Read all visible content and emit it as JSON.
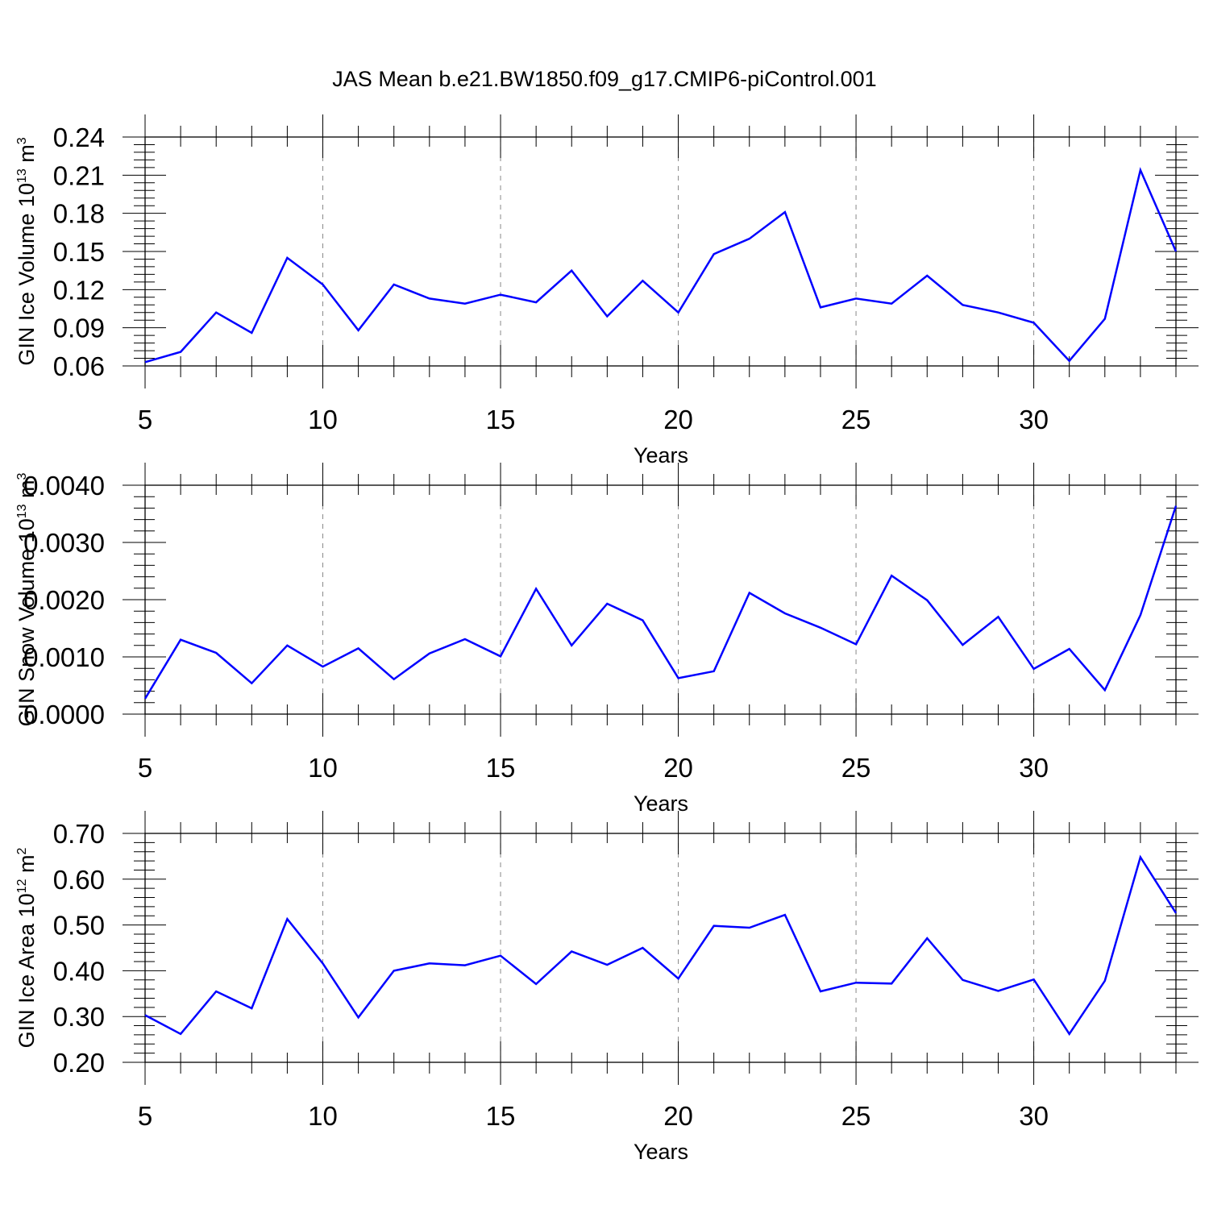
{
  "title": "JAS Mean b.e21.BW1850.f09_g17.CMIP6-piControl.001",
  "colors": {
    "line": "#0000ff",
    "axis": "#000000",
    "grid": "#888888"
  },
  "chart_data": [
    {
      "type": "line",
      "title": "JAS Mean b.e21.BW1850.f09_g17.CMIP6-piControl.001",
      "xlabel": "Years",
      "ylabel": {
        "text": "GIN Ice Volume 10",
        "exp": "13",
        "unit": " m",
        "unit_exp": "3"
      },
      "xlim": [
        5,
        34
      ],
      "ylim": [
        0.06,
        0.24
      ],
      "xticks": [
        5,
        10,
        15,
        20,
        25,
        30
      ],
      "xtick_labels": [
        "5",
        "10",
        "15",
        "20",
        "25",
        "30"
      ],
      "yticks": [
        0.06,
        0.09,
        0.12,
        0.15,
        0.18,
        0.21,
        0.24
      ],
      "ytick_labels": [
        "0.06",
        "0.09",
        "0.12",
        "0.15",
        "0.18",
        "0.21",
        "0.24"
      ],
      "grid": "vertical dashed at major x ticks",
      "series": [
        {
          "x": [
            5,
            6,
            7,
            8,
            9,
            10,
            11,
            12,
            13,
            14,
            15,
            16,
            17,
            18,
            19,
            20,
            21,
            22,
            23,
            24,
            25,
            26,
            27,
            28,
            29,
            30,
            31,
            32,
            33,
            34
          ],
          "values": [
            0.063,
            0.071,
            0.102,
            0.086,
            0.145,
            0.124,
            0.088,
            0.124,
            0.113,
            0.109,
            0.116,
            0.11,
            0.135,
            0.099,
            0.127,
            0.102,
            0.148,
            0.16,
            0.181,
            0.106,
            0.113,
            0.109,
            0.131,
            0.108,
            0.102,
            0.094,
            0.064,
            0.097,
            0.214,
            0.15
          ]
        }
      ]
    },
    {
      "type": "line",
      "xlabel": "Years",
      "ylabel": {
        "text": "GIN Snow Volume 10",
        "exp": "13",
        "unit": " m",
        "unit_exp": "3"
      },
      "xlim": [
        5,
        34
      ],
      "ylim": [
        0.0,
        0.004
      ],
      "xticks": [
        5,
        10,
        15,
        20,
        25,
        30
      ],
      "xtick_labels": [
        "5",
        "10",
        "15",
        "20",
        "25",
        "30"
      ],
      "yticks": [
        0.0,
        0.001,
        0.002,
        0.003,
        0.004
      ],
      "ytick_labels": [
        "0.0000",
        "0.0010",
        "0.0020",
        "0.0030",
        "0.0040"
      ],
      "grid": "vertical dashed at major x ticks",
      "series": [
        {
          "x": [
            5,
            6,
            7,
            8,
            9,
            10,
            11,
            12,
            13,
            14,
            15,
            16,
            17,
            18,
            19,
            20,
            21,
            22,
            23,
            24,
            25,
            26,
            27,
            28,
            29,
            30,
            31,
            32,
            33,
            34
          ],
          "values": [
            0.00027,
            0.0013,
            0.00107,
            0.00054,
            0.0012,
            0.00083,
            0.00115,
            0.00061,
            0.00106,
            0.00131,
            0.00101,
            0.00219,
            0.0012,
            0.00193,
            0.00164,
            0.00063,
            0.00075,
            0.00212,
            0.00176,
            0.00151,
            0.00122,
            0.00242,
            0.00199,
            0.00121,
            0.0017,
            0.00079,
            0.00114,
            0.00042,
            0.00173,
            0.00364
          ]
        }
      ]
    },
    {
      "type": "line",
      "xlabel": "Years",
      "ylabel": {
        "text": "GIN Ice Area 10",
        "exp": "12",
        "unit": " m",
        "unit_exp": "2"
      },
      "xlim": [
        5,
        34
      ],
      "ylim": [
        0.2,
        0.7
      ],
      "xticks": [
        5,
        10,
        15,
        20,
        25,
        30
      ],
      "xtick_labels": [
        "5",
        "10",
        "15",
        "20",
        "25",
        "30"
      ],
      "yticks": [
        0.2,
        0.3,
        0.4,
        0.5,
        0.6,
        0.7
      ],
      "ytick_labels": [
        "0.20",
        "0.30",
        "0.40",
        "0.50",
        "0.60",
        "0.70"
      ],
      "grid": "vertical dashed at major x ticks",
      "series": [
        {
          "x": [
            5,
            6,
            7,
            8,
            9,
            10,
            11,
            12,
            13,
            14,
            15,
            16,
            17,
            18,
            19,
            20,
            21,
            22,
            23,
            24,
            25,
            26,
            27,
            28,
            29,
            30,
            31,
            32,
            33,
            34
          ],
          "values": [
            0.303,
            0.262,
            0.355,
            0.318,
            0.513,
            0.416,
            0.298,
            0.4,
            0.416,
            0.412,
            0.433,
            0.371,
            0.442,
            0.413,
            0.45,
            0.383,
            0.498,
            0.494,
            0.522,
            0.355,
            0.374,
            0.372,
            0.471,
            0.38,
            0.356,
            0.381,
            0.262,
            0.378,
            0.648,
            0.526
          ]
        }
      ]
    }
  ]
}
